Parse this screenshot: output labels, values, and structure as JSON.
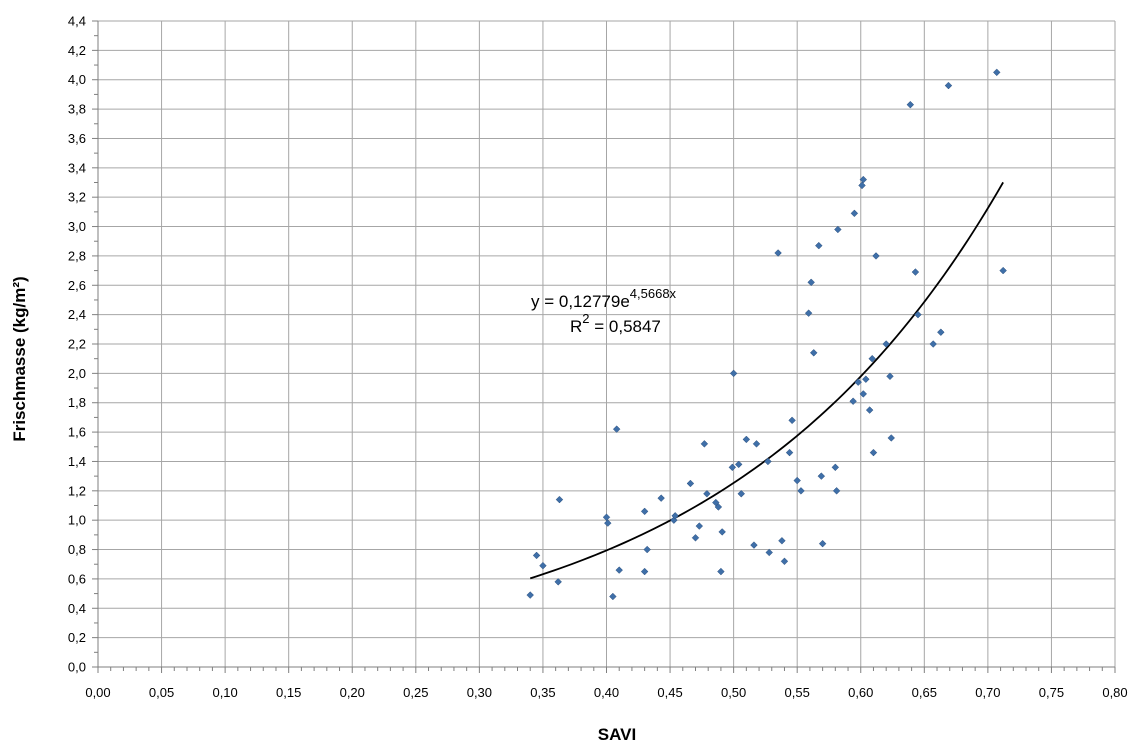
{
  "chart_data": {
    "type": "scatter",
    "title": "",
    "xlabel": "SAVI",
    "ylabel": "Frischmasse (kg/m²)",
    "xlim": [
      0,
      0.8
    ],
    "ylim": [
      0,
      4.4
    ],
    "x_ticks": [
      "0,00",
      "0,05",
      "0,10",
      "0,15",
      "0,20",
      "0,25",
      "0,30",
      "0,35",
      "0,40",
      "0,45",
      "0,50",
      "0,55",
      "0,60",
      "0,65",
      "0,70",
      "0,75",
      "0,80"
    ],
    "y_ticks": [
      "0,0",
      "0,2",
      "0,4",
      "0,6",
      "0,8",
      "1,0",
      "1,2",
      "1,4",
      "1,6",
      "1,8",
      "2,0",
      "2,2",
      "2,4",
      "2,6",
      "2,8",
      "3,0",
      "3,2",
      "3,4",
      "3,6",
      "3,8",
      "4,0",
      "4,2",
      "4,4"
    ],
    "grid": true,
    "marker_color": "#3f6fa8",
    "trendline": {
      "type": "exponential",
      "a": 0.12779,
      "b": 4.5668,
      "x_range": [
        0.34,
        0.712
      ],
      "equation_main": "y = 0,12779e",
      "equation_exp": "4,5668x",
      "r2_main": "R",
      "r2_sup": "2",
      "r2_value": " = 0,5847"
    },
    "points": [
      [
        0.34,
        0.49
      ],
      [
        0.345,
        0.76
      ],
      [
        0.35,
        0.69
      ],
      [
        0.362,
        0.58
      ],
      [
        0.363,
        1.14
      ],
      [
        0.4,
        1.02
      ],
      [
        0.401,
        0.98
      ],
      [
        0.405,
        0.48
      ],
      [
        0.408,
        1.62
      ],
      [
        0.41,
        0.66
      ],
      [
        0.43,
        1.06
      ],
      [
        0.43,
        0.65
      ],
      [
        0.432,
        0.8
      ],
      [
        0.443,
        1.15
      ],
      [
        0.453,
        1.0
      ],
      [
        0.454,
        1.03
      ],
      [
        0.466,
        1.25
      ],
      [
        0.47,
        0.88
      ],
      [
        0.473,
        0.96
      ],
      [
        0.477,
        1.52
      ],
      [
        0.479,
        1.18
      ],
      [
        0.486,
        1.12
      ],
      [
        0.488,
        1.09
      ],
      [
        0.49,
        0.65
      ],
      [
        0.491,
        0.92
      ],
      [
        0.5,
        2.0
      ],
      [
        0.499,
        1.36
      ],
      [
        0.504,
        1.38
      ],
      [
        0.506,
        1.18
      ],
      [
        0.51,
        1.55
      ],
      [
        0.516,
        0.83
      ],
      [
        0.518,
        1.52
      ],
      [
        0.527,
        1.4
      ],
      [
        0.528,
        0.78
      ],
      [
        0.535,
        2.82
      ],
      [
        0.538,
        0.86
      ],
      [
        0.54,
        0.72
      ],
      [
        0.544,
        1.46
      ],
      [
        0.546,
        1.68
      ],
      [
        0.55,
        1.27
      ],
      [
        0.553,
        1.2
      ],
      [
        0.559,
        2.41
      ],
      [
        0.561,
        2.62
      ],
      [
        0.563,
        2.14
      ],
      [
        0.567,
        2.87
      ],
      [
        0.569,
        1.3
      ],
      [
        0.57,
        0.84
      ],
      [
        0.58,
        1.36
      ],
      [
        0.581,
        1.2
      ],
      [
        0.582,
        2.98
      ],
      [
        0.594,
        1.81
      ],
      [
        0.595,
        3.09
      ],
      [
        0.598,
        1.94
      ],
      [
        0.601,
        3.28
      ],
      [
        0.602,
        1.86
      ],
      [
        0.602,
        3.32
      ],
      [
        0.604,
        1.96
      ],
      [
        0.607,
        1.75
      ],
      [
        0.609,
        2.1
      ],
      [
        0.61,
        1.46
      ],
      [
        0.612,
        2.8
      ],
      [
        0.62,
        2.2
      ],
      [
        0.623,
        1.98
      ],
      [
        0.624,
        1.56
      ],
      [
        0.639,
        3.83
      ],
      [
        0.643,
        2.69
      ],
      [
        0.645,
        2.4
      ],
      [
        0.657,
        2.2
      ],
      [
        0.663,
        2.28
      ],
      [
        0.669,
        3.96
      ],
      [
        0.707,
        4.05
      ],
      [
        0.712,
        2.7
      ]
    ]
  }
}
